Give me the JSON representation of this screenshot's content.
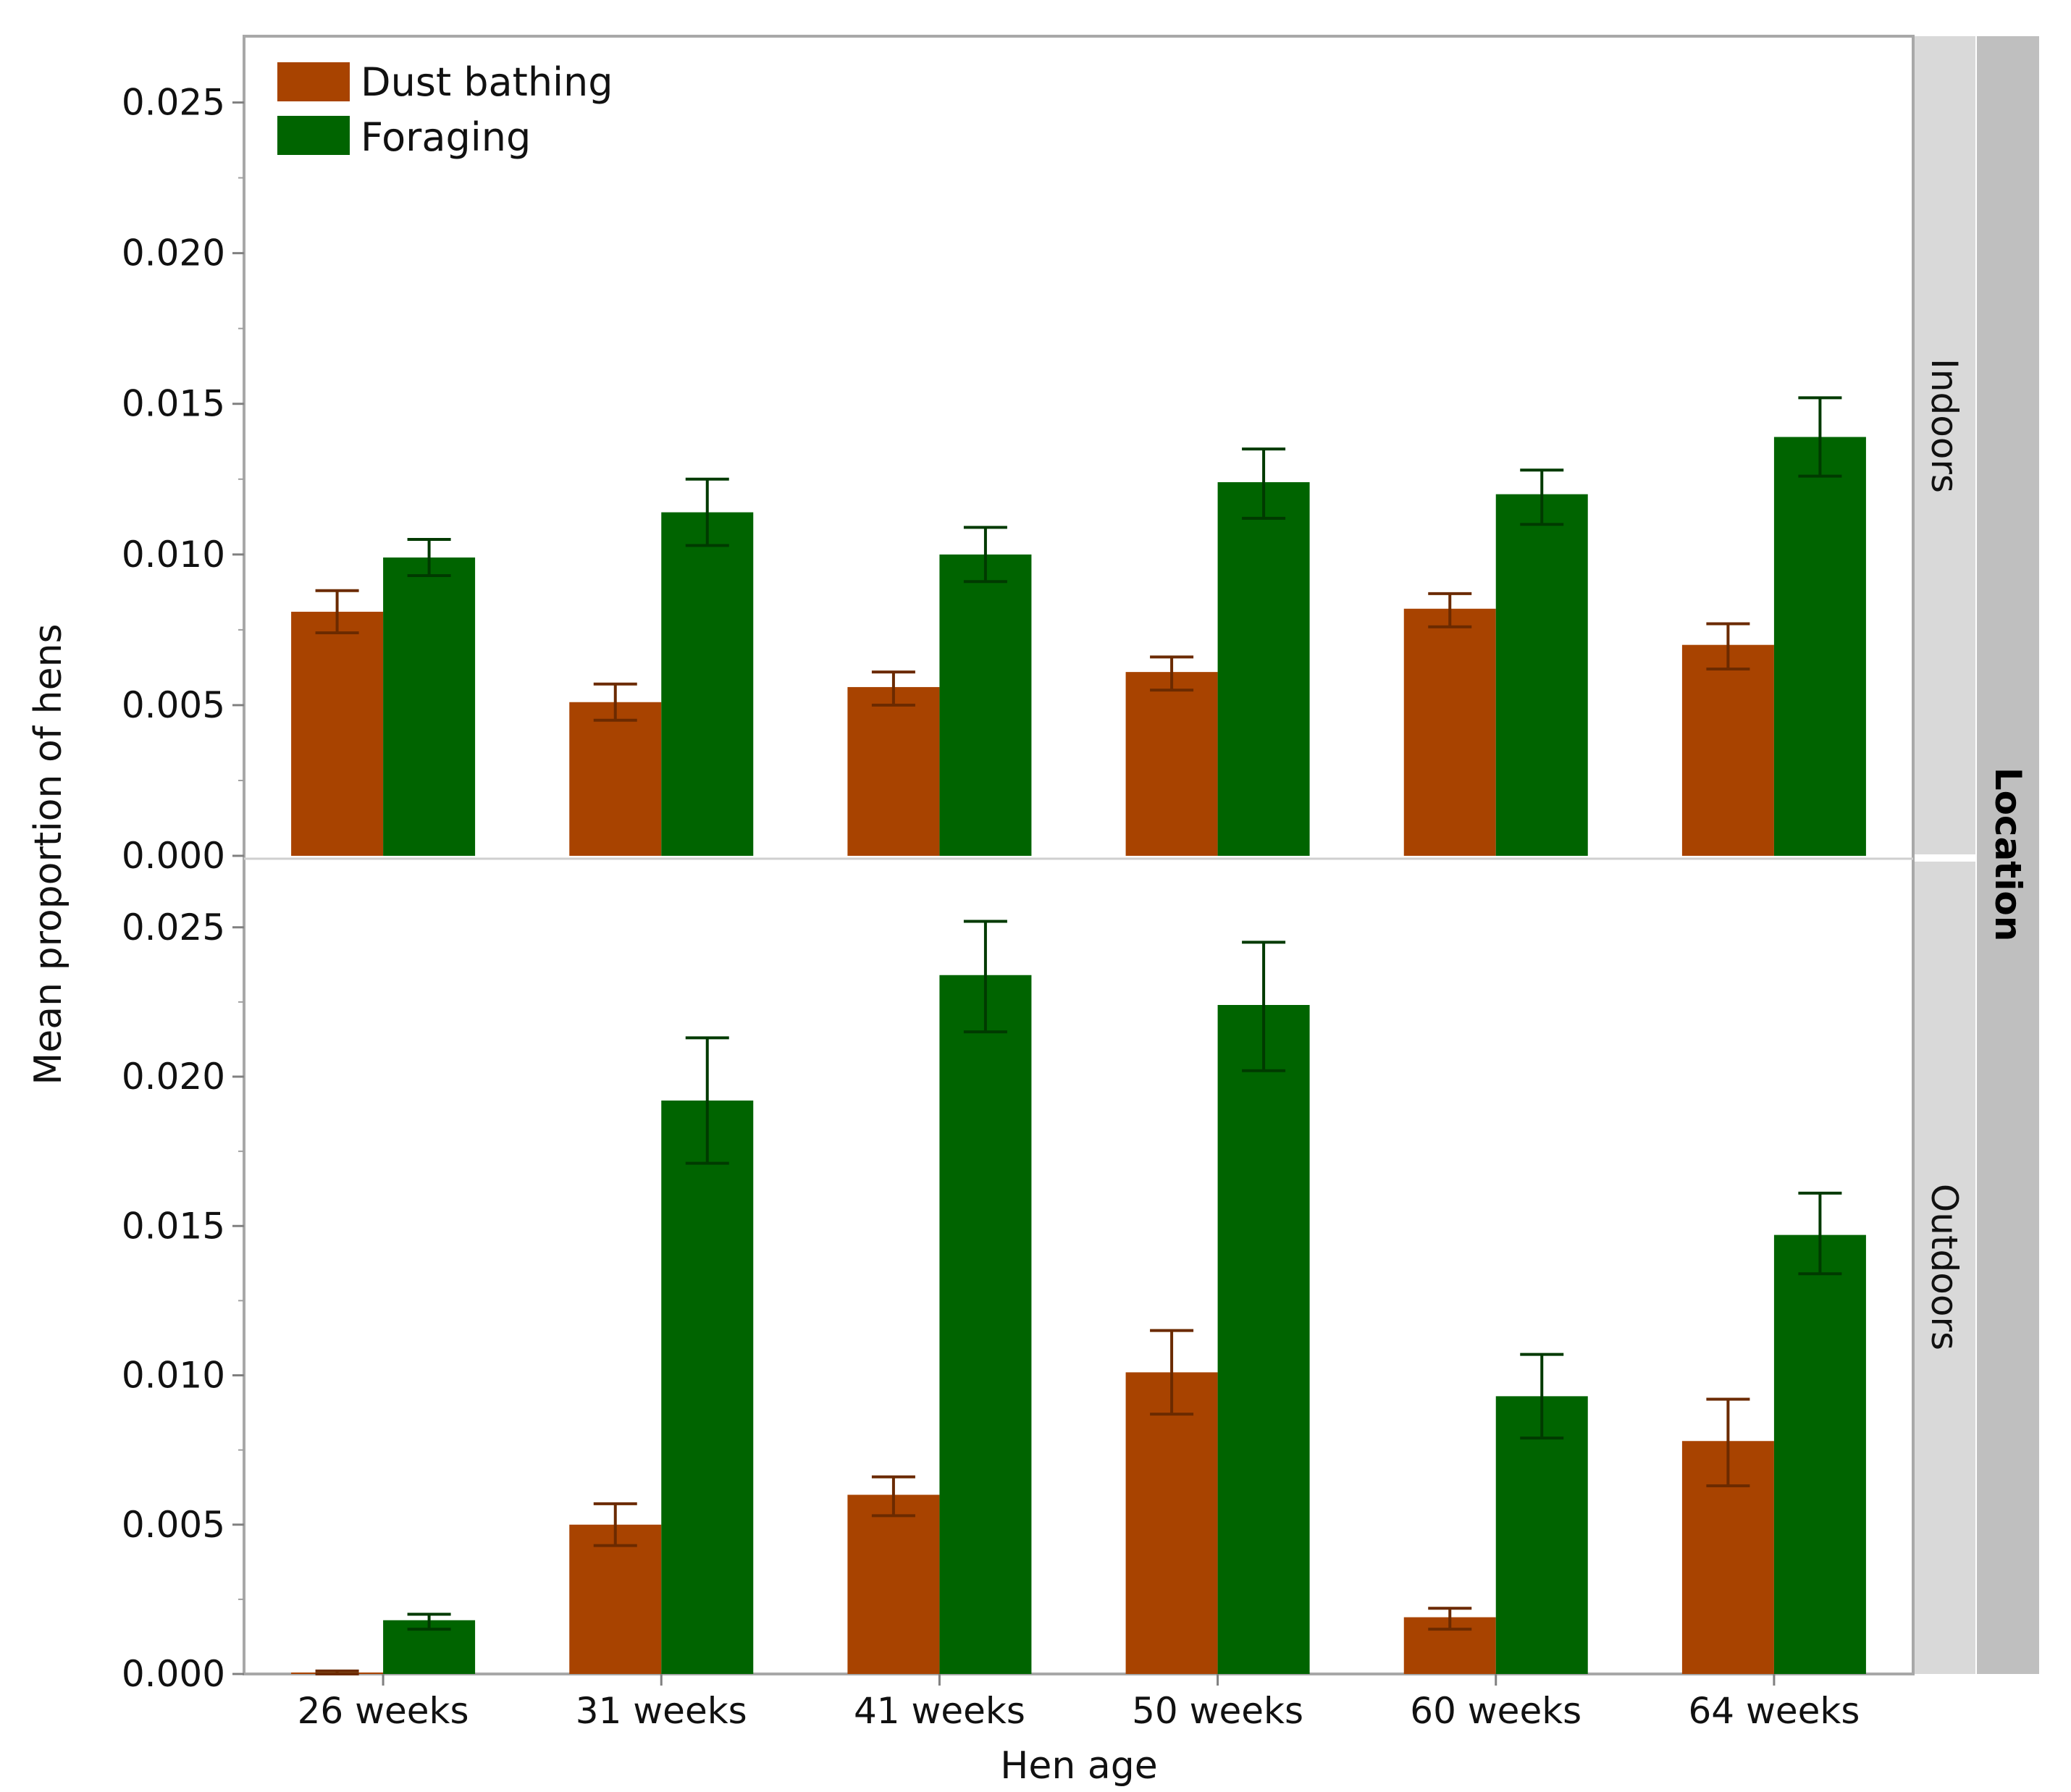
{
  "chart_data": {
    "type": "bar",
    "categories": [
      "26 weeks",
      "31 weeks",
      "41 weeks",
      "50 weeks",
      "60 weeks",
      "64 weeks"
    ],
    "xlabel": "Hen age",
    "ylabel": "Mean proportion of hens",
    "ylim": [
      0,
      0.0272
    ],
    "yticks": [
      "0.000",
      "0.005",
      "0.010",
      "0.015",
      "0.020",
      "0.025"
    ],
    "facet_label": "Location",
    "legend": {
      "position": "top-left",
      "entries": [
        {
          "name": "Dust bathing",
          "color": "#a84300"
        },
        {
          "name": "Foraging",
          "color": "#006400"
        }
      ]
    },
    "panels": [
      {
        "name": "Indoors",
        "series": [
          {
            "name": "Dust bathing",
            "values": [
              0.0081,
              0.0051,
              0.0056,
              0.0061,
              0.0082,
              0.007
            ],
            "err_low": [
              0.0074,
              0.0045,
              0.005,
              0.0055,
              0.0076,
              0.0062
            ],
            "err_high": [
              0.0088,
              0.0057,
              0.0061,
              0.0066,
              0.0087,
              0.0077
            ]
          },
          {
            "name": "Foraging",
            "values": [
              0.0099,
              0.0114,
              0.01,
              0.0124,
              0.012,
              0.0139
            ],
            "err_low": [
              0.0093,
              0.0103,
              0.0091,
              0.0112,
              0.011,
              0.0126
            ],
            "err_high": [
              0.0105,
              0.0125,
              0.0109,
              0.0135,
              0.0128,
              0.0152
            ]
          }
        ]
      },
      {
        "name": "Outdoors",
        "series": [
          {
            "name": "Dust bathing",
            "values": [
              5e-05,
              0.005,
              0.006,
              0.0101,
              0.0019,
              0.0078
            ],
            "err_low": [
              0.0,
              0.0043,
              0.0053,
              0.0087,
              0.0015,
              0.0063
            ],
            "err_high": [
              0.0001,
              0.0057,
              0.0066,
              0.0115,
              0.0022,
              0.0092
            ]
          },
          {
            "name": "Foraging",
            "values": [
              0.0018,
              0.0192,
              0.0234,
              0.0224,
              0.0093,
              0.0147
            ],
            "err_low": [
              0.0015,
              0.0171,
              0.0215,
              0.0202,
              0.0079,
              0.0134
            ],
            "err_high": [
              0.002,
              0.0213,
              0.0252,
              0.0245,
              0.0107,
              0.0161
            ]
          }
        ]
      }
    ]
  }
}
